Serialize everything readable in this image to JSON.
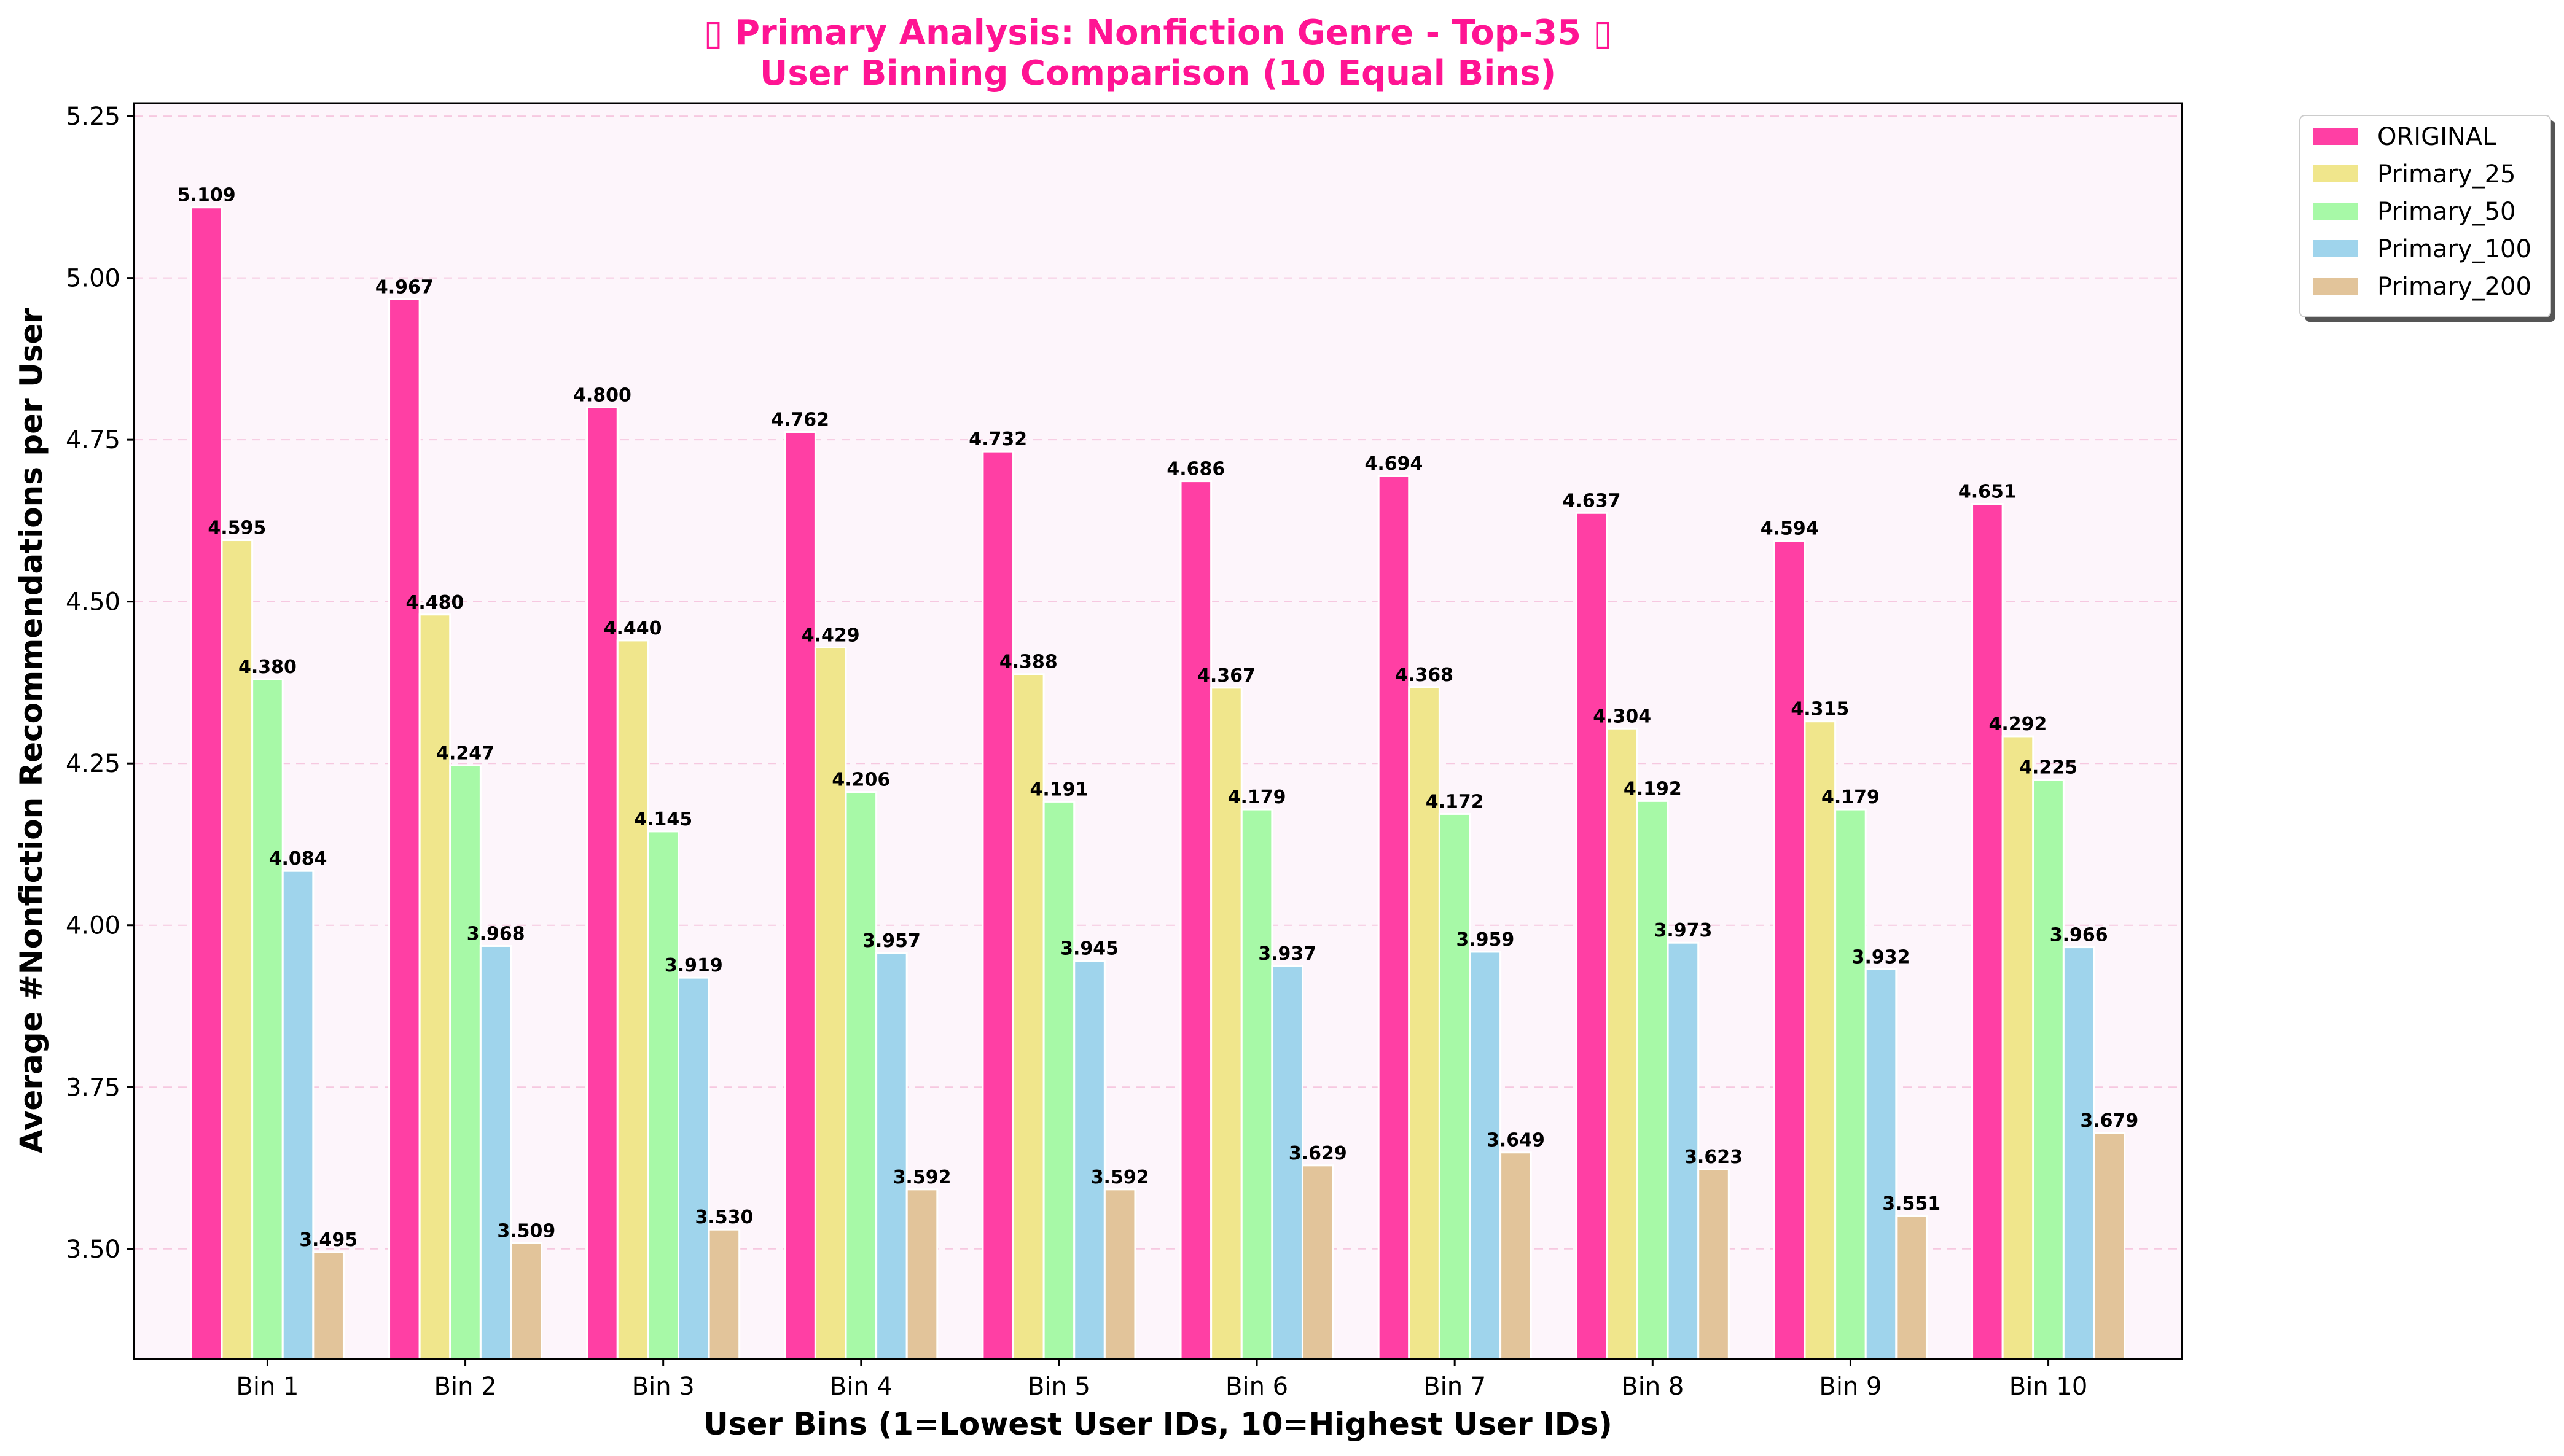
{
  "chart_data": {
    "type": "bar",
    "title_line1": "▯ Primary Analysis: Nonfiction Genre - Top-35 ▯",
    "title_line2": "User Binning Comparison (10 Equal Bins)",
    "xlabel": "User Bins (1=Lowest User IDs, 10=Highest User IDs)",
    "ylabel": "Average #Nonfiction Recommendations per User",
    "ylim": [
      3.33,
      5.27
    ],
    "yticks": [
      "3.50",
      "3.75",
      "4.00",
      "4.25",
      "4.50",
      "4.75",
      "5.00",
      "5.25"
    ],
    "ytick_values": [
      3.5,
      3.75,
      4.0,
      4.25,
      4.5,
      4.75,
      5.0,
      5.25
    ],
    "grid": "horizontal dashed",
    "legend_position": "outside top-right",
    "plot_background": "#fdf5fb",
    "categories": [
      "Bin 1",
      "Bin 2",
      "Bin 3",
      "Bin 4",
      "Bin 5",
      "Bin 6",
      "Bin 7",
      "Bin 8",
      "Bin 9",
      "Bin 10"
    ],
    "series": [
      {
        "name": "ORIGINAL",
        "color": "#ff3fa4",
        "values": [
          5.109,
          4.967,
          4.8,
          4.762,
          4.732,
          4.686,
          4.694,
          4.637,
          4.594,
          4.651
        ],
        "labels": [
          "5.109",
          "4.967",
          "4.800",
          "4.762",
          "4.732",
          "4.686",
          "4.694",
          "4.637",
          "4.594",
          "4.651"
        ]
      },
      {
        "name": "Primary_25",
        "color": "#f0e68c",
        "values": [
          4.595,
          4.48,
          4.44,
          4.429,
          4.388,
          4.367,
          4.368,
          4.304,
          4.315,
          4.292
        ],
        "labels": [
          "4.595",
          "4.480",
          "4.440",
          "4.429",
          "4.388",
          "4.367",
          "4.368",
          "4.304",
          "4.315",
          "4.292"
        ]
      },
      {
        "name": "Primary_50",
        "color": "#a7f9a7",
        "values": [
          4.38,
          4.247,
          4.145,
          4.206,
          4.191,
          4.179,
          4.172,
          4.192,
          4.179,
          4.225
        ],
        "labels": [
          "4.380",
          "4.247",
          "4.145",
          "4.206",
          "4.191",
          "4.179",
          "4.172",
          "4.192",
          "4.179",
          "4.225"
        ]
      },
      {
        "name": "Primary_100",
        "color": "#9fd4ec",
        "values": [
          4.084,
          3.968,
          3.919,
          3.957,
          3.945,
          3.937,
          3.959,
          3.973,
          3.932,
          3.966
        ],
        "labels": [
          "4.084",
          "3.968",
          "3.919",
          "3.957",
          "3.945",
          "3.937",
          "3.959",
          "3.973",
          "3.932",
          "3.966"
        ]
      },
      {
        "name": "Primary_200",
        "color": "#e2c49a",
        "values": [
          3.495,
          3.509,
          3.53,
          3.592,
          3.592,
          3.629,
          3.649,
          3.623,
          3.551,
          3.679
        ],
        "labels": [
          "3.495",
          "3.509",
          "3.530",
          "3.592",
          "3.592",
          "3.629",
          "3.649",
          "3.623",
          "3.551",
          "3.679"
        ]
      }
    ]
  }
}
